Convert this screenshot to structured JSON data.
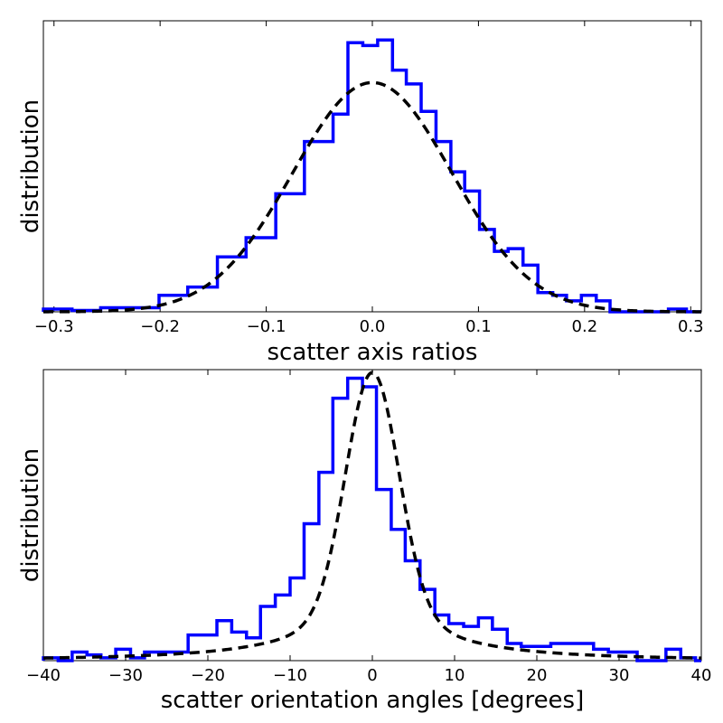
{
  "chart_data": [
    {
      "type": "histogram",
      "title": "",
      "xlabel": "scatter axis ratios",
      "ylabel": "distribution",
      "xlim": [
        -0.31,
        0.31
      ],
      "ylim": [
        0,
        1.06
      ],
      "xticks": [
        -0.3,
        -0.2,
        -0.1,
        0.0,
        0.1,
        0.2,
        0.3
      ],
      "xtick_labels": [
        "−0.3",
        "−0.2",
        "−0.1",
        "0.0",
        "0.1",
        "0.2",
        "0.3"
      ],
      "grid": false,
      "series": [
        {
          "name": "histogram",
          "style": "step",
          "color": "#0000ff",
          "bin_edges": [
            -0.31,
            -0.283,
            -0.256,
            -0.228,
            -0.201,
            -0.174,
            -0.146,
            -0.119,
            -0.091,
            -0.064,
            -0.037,
            -0.023,
            -0.009,
            0.005,
            0.019,
            0.032,
            0.046,
            0.06,
            0.074,
            0.087,
            0.101,
            0.115,
            0.128,
            0.142,
            0.156,
            0.17,
            0.183,
            0.197,
            0.211,
            0.224,
            0.238,
            0.252,
            0.279,
            0.296,
            0.31
          ],
          "values": [
            0.01,
            0.005,
            0.015,
            0.015,
            0.06,
            0.09,
            0.2,
            0.27,
            0.43,
            0.62,
            0.72,
            0.98,
            0.97,
            0.99,
            0.88,
            0.83,
            0.73,
            0.62,
            0.51,
            0.44,
            0.3,
            0.22,
            0.23,
            0.17,
            0.07,
            0.06,
            0.04,
            0.06,
            0.04,
            0.0,
            0.0,
            0.0,
            0.01,
            0.0
          ]
        },
        {
          "name": "gaussian fit",
          "style": "dashed",
          "color": "#000000",
          "function": "gaussian",
          "amplitude": 0.835,
          "mean": 0.0,
          "sigma": 0.075
        }
      ]
    },
    {
      "type": "histogram",
      "title": "",
      "xlabel": "scatter orientation angles [degrees]",
      "ylabel": "distribution",
      "xlim": [
        -40,
        40
      ],
      "ylim": [
        0,
        1.02
      ],
      "xticks": [
        -40,
        -30,
        -20,
        -10,
        0,
        10,
        20,
        30,
        40
      ],
      "xtick_labels": [
        "−40",
        "−30",
        "−20",
        "−10",
        "0",
        "10",
        "20",
        "30",
        "40"
      ],
      "grid": false,
      "series": [
        {
          "name": "histogram",
          "style": "step",
          "color": "#0000ff",
          "bin_edges": [
            -40,
            -38.2,
            -36.5,
            -34.7,
            -33,
            -31.2,
            -29.4,
            -27.7,
            -25.9,
            -24.1,
            -22.4,
            -20.6,
            -18.9,
            -17.1,
            -15.3,
            -13.6,
            -11.8,
            -10.0,
            -8.3,
            -6.5,
            -4.8,
            -3.0,
            -1.2,
            0.5,
            2.3,
            4.0,
            5.8,
            7.6,
            9.3,
            11.1,
            12.9,
            14.6,
            16.4,
            18.1,
            19.9,
            21.7,
            23.4,
            25.2,
            26.9,
            28.7,
            30.5,
            32.2,
            34.0,
            35.7,
            37.5,
            39.3,
            40
          ],
          "values": [
            0.01,
            0.0,
            0.03,
            0.02,
            0.01,
            0.04,
            0.01,
            0.03,
            0.03,
            0.03,
            0.09,
            0.09,
            0.14,
            0.1,
            0.08,
            0.19,
            0.23,
            0.29,
            0.48,
            0.66,
            0.92,
            0.99,
            0.96,
            0.6,
            0.46,
            0.35,
            0.25,
            0.16,
            0.13,
            0.12,
            0.15,
            0.11,
            0.06,
            0.05,
            0.05,
            0.06,
            0.06,
            0.06,
            0.04,
            0.03,
            0.03,
            0.0,
            0.0,
            0.04,
            0.01,
            0.0
          ]
        },
        {
          "name": "fit",
          "style": "dashed",
          "color": "#000000",
          "function": "gaussian_plus_lorentzian",
          "gauss_amplitude": 0.82,
          "gauss_sigma": 3.2,
          "lorentz_amplitude": 0.19,
          "lorentz_gamma": 9.0
        }
      ]
    }
  ]
}
